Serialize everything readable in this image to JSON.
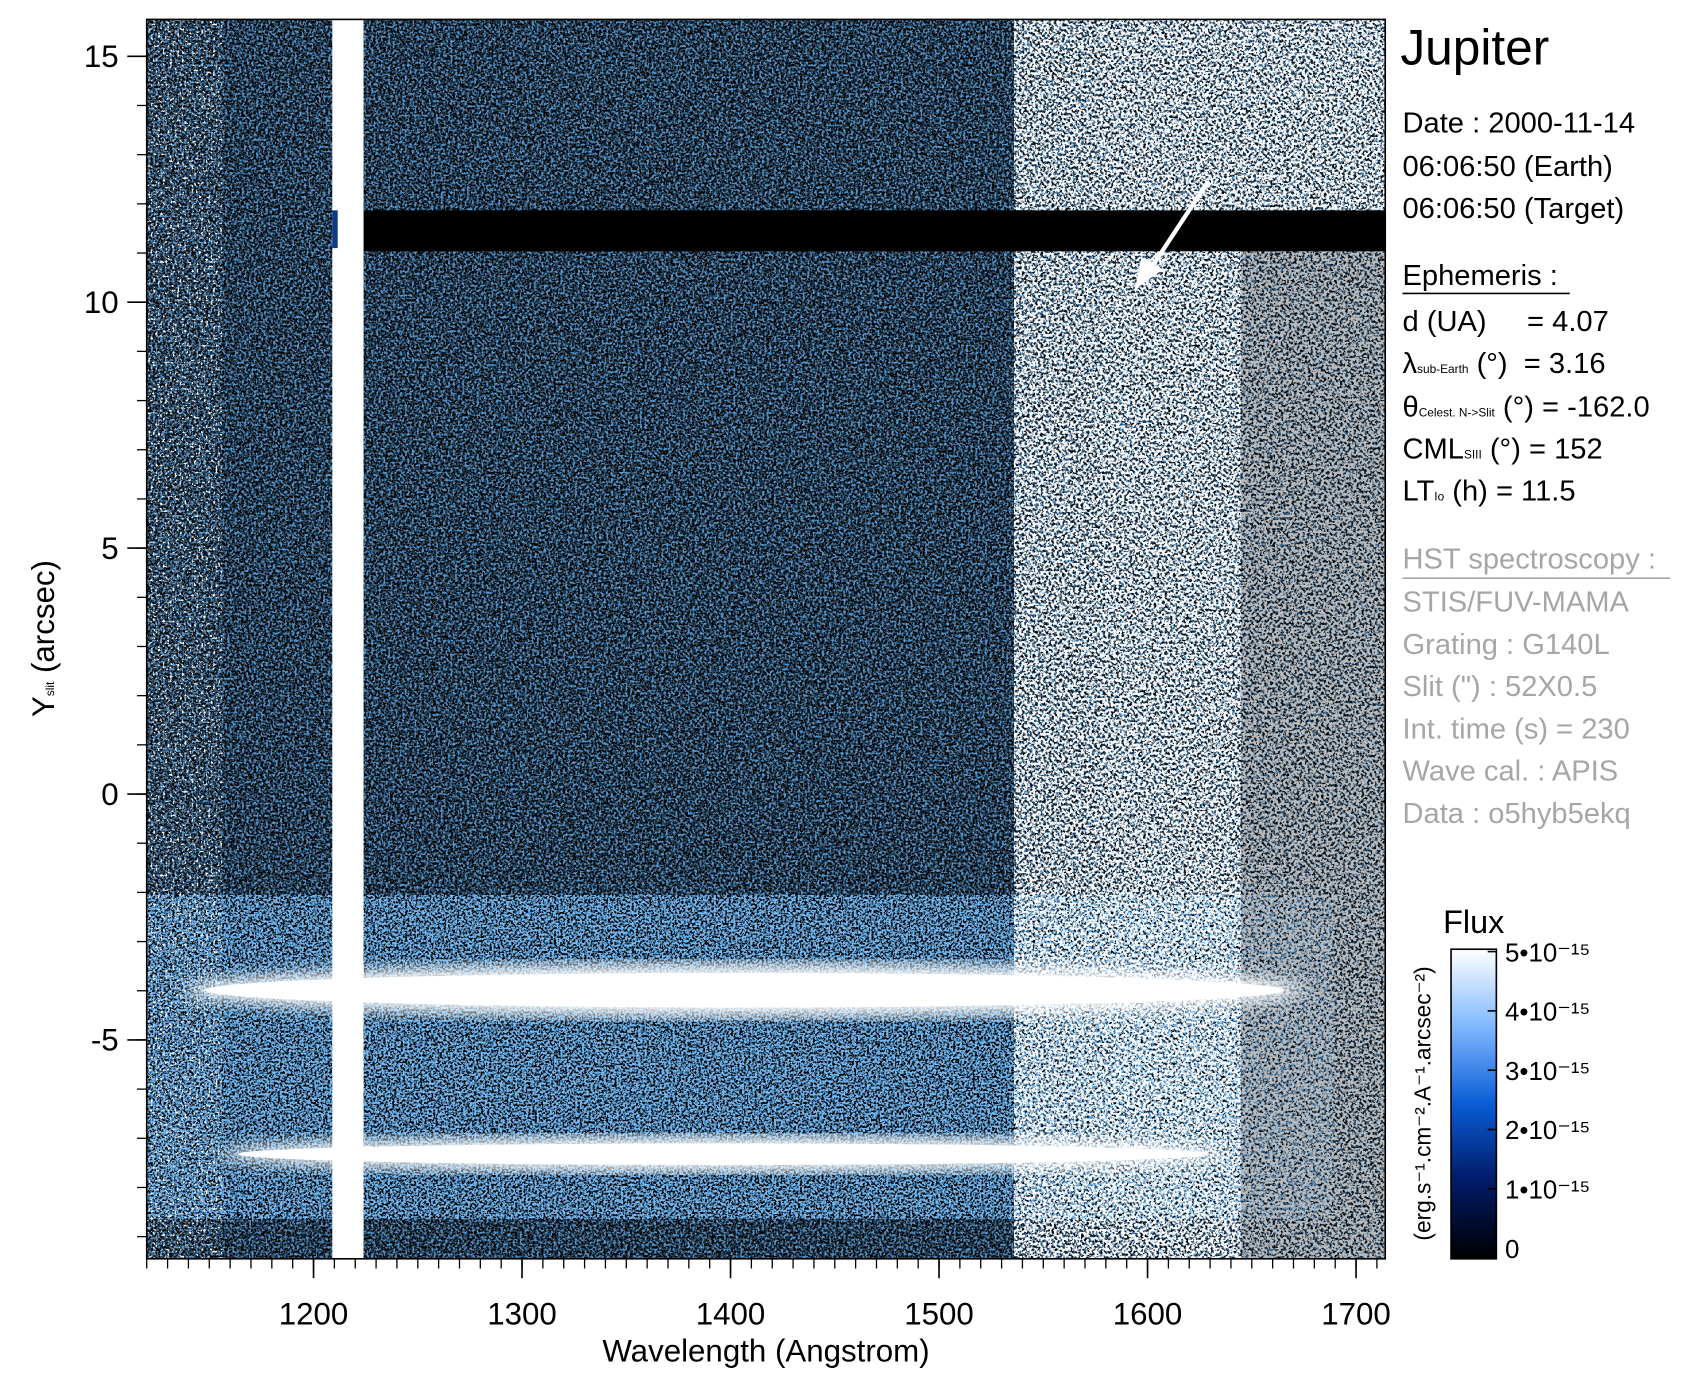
{
  "chart_data": {
    "type": "heatmap",
    "title": "Jupiter",
    "xlabel": "Wavelength (Angstrom)",
    "ylabel": {
      "main": "Y",
      "sub": "slit",
      "rest": " (arcsec)"
    },
    "xlim": [
      1120,
      1714
    ],
    "ylim": [
      -9.45,
      15.75
    ],
    "xticks": [
      1200,
      1300,
      1400,
      1500,
      1600,
      1700
    ],
    "yticks": [
      -5,
      0,
      5,
      10,
      15
    ],
    "xminor": 10,
    "yminor": 1,
    "info": {
      "date": "Date : 2000-11-14",
      "earth": "06:06:50 (Earth)",
      "target": "06:06:50 (Target)"
    },
    "ephemeris": {
      "heading": "Ephemeris :",
      "items": [
        {
          "main": "d (UA)     = 4.07"
        },
        {
          "main": "λ",
          "sub": "sub-Earth",
          "rest": " (°)  = 3.16"
        },
        {
          "main": "θ",
          "sub": "Celest. N->Slit",
          "rest": " (°) = -162.0"
        },
        {
          "main": "CML",
          "sub": "SIII",
          "rest": " (°) = 152"
        },
        {
          "main": "LT",
          "sub": "Io",
          "rest": " (h) = 11.5"
        }
      ]
    },
    "instrument": {
      "heading": "HST spectroscopy :",
      "items": [
        "STIS/FUV-MAMA",
        "Grating : G140L",
        "Slit (\") : 52X0.5",
        "Int. time (s) = 230",
        "Wave cal. : APIS",
        "Data : o5hyb5ekq"
      ]
    },
    "colorbar": {
      "title": "Flux",
      "label": "(erg.s⁻¹.cm⁻².A⁻¹.arcsec⁻²)",
      "lim": [
        -1.8e-16,
        5.04e-15
      ],
      "ticks": [
        0,
        {
          "value": 1e-15,
          "label": "1•10⁻¹⁵"
        },
        {
          "value": 2e-15,
          "label": "2•10⁻¹⁵"
        },
        {
          "value": 3e-15,
          "label": "3•10⁻¹⁵"
        },
        {
          "value": 4e-15,
          "label": "4•10⁻¹⁵"
        },
        {
          "value": 5e-15,
          "label": "5•10⁻¹⁵"
        }
      ],
      "colormap": [
        "#000000",
        "#001a66",
        "#0a5cd6",
        "#7fb8ff",
        "#ffffff"
      ]
    }
  }
}
